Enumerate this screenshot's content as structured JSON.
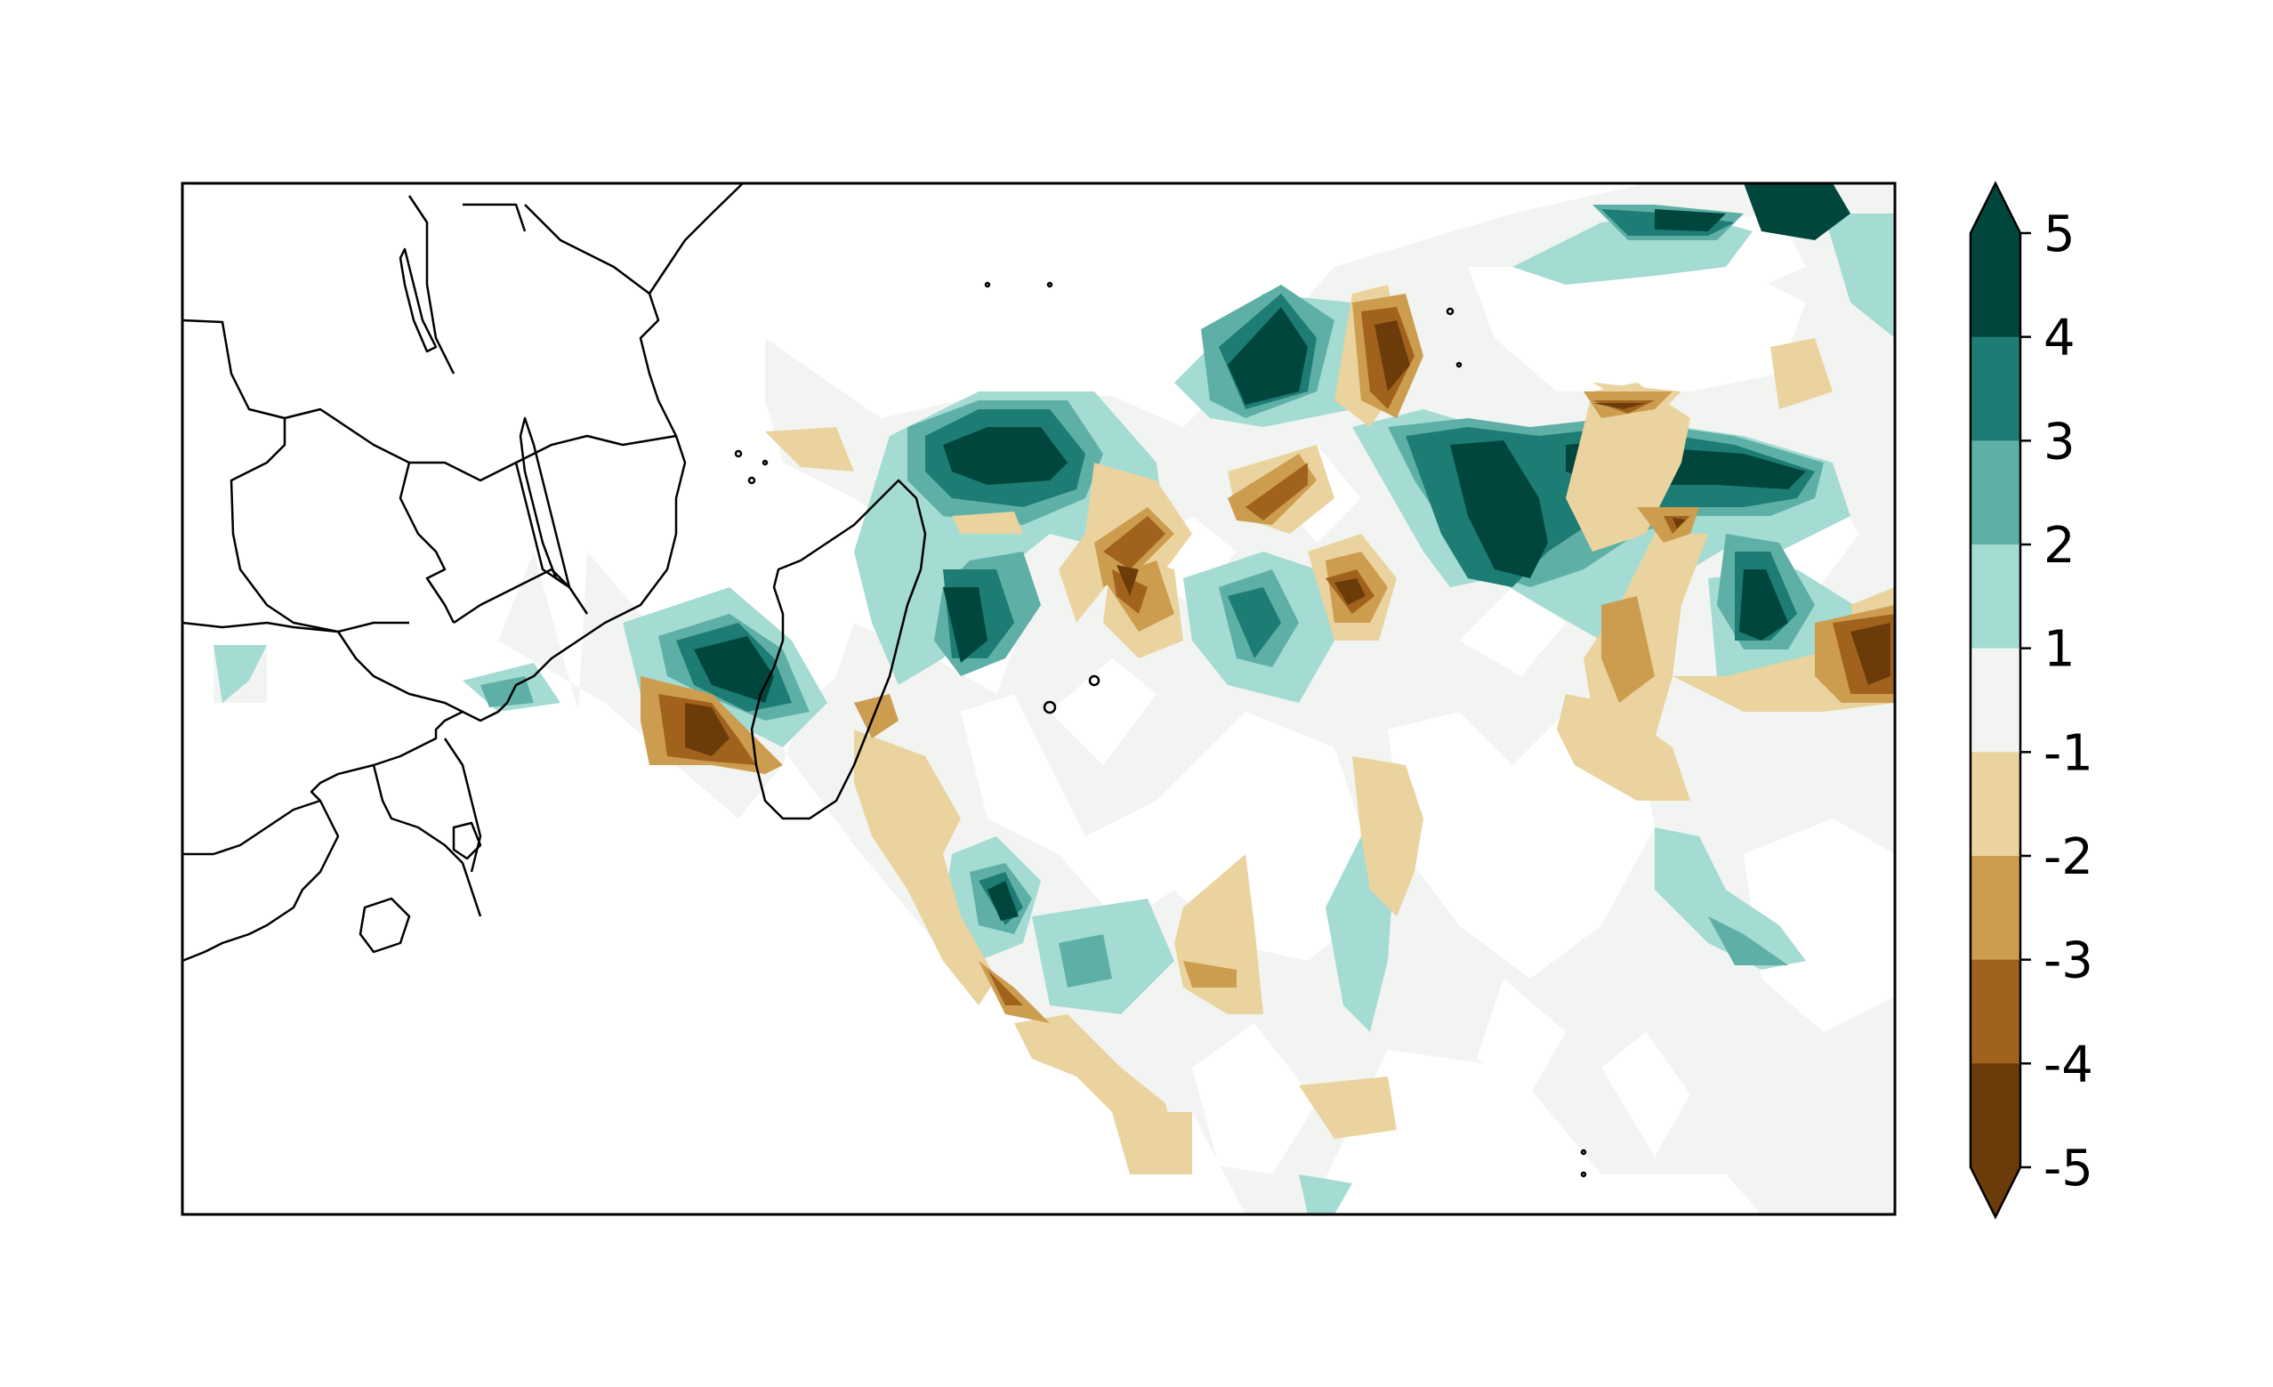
{
  "colorbar": {
    "extend": "both",
    "ticks": [
      "5",
      "4",
      "3",
      "2",
      "1",
      "-1",
      "-2",
      "-3",
      "-4",
      "-5"
    ],
    "levels": [
      {
        "range": "4 to 5",
        "color": "#01463d"
      },
      {
        "range": "3 to 4",
        "color": "#1d7c73"
      },
      {
        "range": "2 to 3",
        "color": "#5eb0a6"
      },
      {
        "range": "1 to 2",
        "color": "#a4dbd3"
      },
      {
        "range": "-1 to 1",
        "color": "#f2f4f2"
      },
      {
        "range": "-2 to -1",
        "color": "#ead39e"
      },
      {
        "range": "-3 to -2",
        "color": "#cc9d4f"
      },
      {
        "range": "-4 to -3",
        "color": "#a1621e"
      },
      {
        "range": "-5 to -4",
        "color": "#6b3c0a"
      }
    ],
    "over_color": "#01463d",
    "under_color": "#6b3c0a"
  },
  "map": {
    "region": "Southern Africa and south-west Indian Ocean",
    "land_outline_color": "#000000"
  }
}
